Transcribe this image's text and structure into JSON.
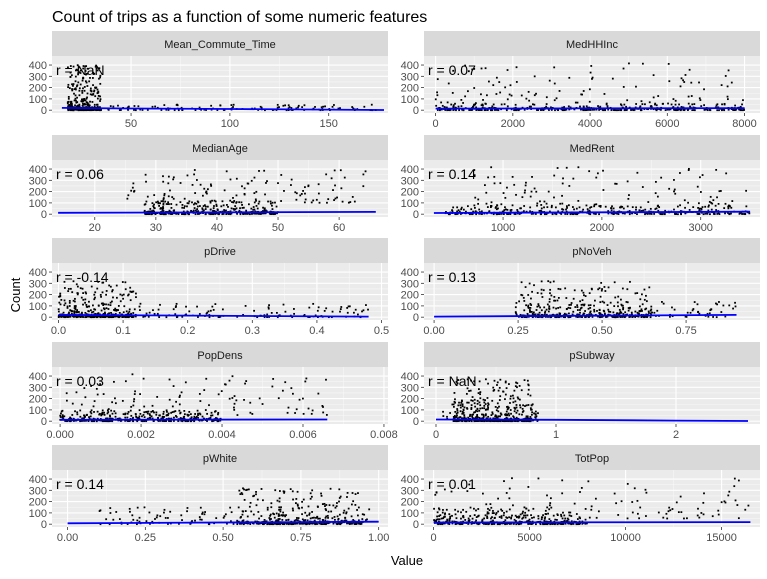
{
  "chart_data": {
    "type": "scatter",
    "title": "Count of trips as a function of some numeric features",
    "xlabel": "Value",
    "ylabel": "Count",
    "grid": true,
    "trend_line_color": "#0000ff",
    "point_color": "#000000",
    "panel_background": "#ebebeb",
    "strip_background": "#d9d9d9",
    "y_ticks": [
      0,
      100,
      200,
      300,
      400
    ],
    "ylim": [
      -25,
      480
    ],
    "panels": [
      {
        "name": "Mean_Commute_Time",
        "r_label": "r = NaN",
        "xlim": [
          10,
          180
        ],
        "x_ticks": [
          50,
          100,
          150
        ],
        "x_tick_labels": [
          "50",
          "100",
          "150"
        ],
        "cluster": [
          [
            18,
            35
          ],
          [
            0,
            400
          ]
        ],
        "sparse": [
          [
            35,
            175
          ],
          [
            0,
            50
          ]
        ],
        "trend": [
          [
            15,
            20
          ],
          [
            50,
            15
          ],
          [
            100,
            10
          ],
          [
            178,
            2
          ]
        ]
      },
      {
        "name": "MedHHInc",
        "r_label": "r = 0.07",
        "xlim": [
          -300,
          8400
        ],
        "x_ticks": [
          0,
          2000,
          4000,
          6000,
          8000
        ],
        "x_tick_labels": [
          "0",
          "2000",
          "4000",
          "6000",
          "8000"
        ],
        "cluster": [
          [
            0,
            8000
          ],
          [
            0,
            60
          ]
        ],
        "sparse": [
          [
            0,
            8000
          ],
          [
            50,
            420
          ]
        ],
        "trend": [
          [
            0,
            14
          ],
          [
            8000,
            18
          ]
        ]
      },
      {
        "name": "MedianAge",
        "r_label": "r = 0.06",
        "xlim": [
          13,
          68
        ],
        "x_ticks": [
          20,
          30,
          40,
          50,
          60
        ],
        "x_tick_labels": [
          "20",
          "30",
          "40",
          "50",
          "60"
        ],
        "cluster": [
          [
            28,
            50
          ],
          [
            0,
            120
          ]
        ],
        "sparse": [
          [
            25,
            65
          ],
          [
            100,
            400
          ]
        ],
        "trend": [
          [
            14,
            12
          ],
          [
            66,
            20
          ]
        ]
      },
      {
        "name": "MedRent",
        "r_label": "r = 0.14",
        "xlim": [
          200,
          3600
        ],
        "x_ticks": [
          1000,
          2000,
          3000
        ],
        "x_tick_labels": [
          "1000",
          "2000",
          "3000"
        ],
        "cluster": [
          [
            400,
            3500
          ],
          [
            0,
            80
          ]
        ],
        "sparse": [
          [
            700,
            3500
          ],
          [
            60,
            420
          ]
        ],
        "trend": [
          [
            300,
            10
          ],
          [
            3500,
            22
          ]
        ]
      },
      {
        "name": "pDrive",
        "r_label": "r = -0.14",
        "xlim": [
          -0.01,
          0.51
        ],
        "x_ticks": [
          0,
          0.1,
          0.2,
          0.3,
          0.4,
          0.5
        ],
        "x_tick_labels": [
          "0.0",
          "0.1",
          "0.2",
          "0.3",
          "0.4",
          "0.5"
        ],
        "cluster": [
          [
            0,
            0.12
          ],
          [
            0,
            320
          ]
        ],
        "sparse": [
          [
            0.1,
            0.48
          ],
          [
            0,
            120
          ]
        ],
        "trend": [
          [
            0,
            20
          ],
          [
            0.48,
            5
          ]
        ]
      },
      {
        "name": "pNoVeh",
        "r_label": "r = 0.13",
        "xlim": [
          -0.03,
          0.97
        ],
        "x_ticks": [
          0,
          0.25,
          0.5,
          0.75
        ],
        "x_tick_labels": [
          "0.00",
          "0.25",
          "0.50",
          "0.75"
        ],
        "cluster": [
          [
            0.25,
            0.65
          ],
          [
            0,
            320
          ]
        ],
        "sparse": [
          [
            0.2,
            0.9
          ],
          [
            0,
            150
          ]
        ],
        "trend": [
          [
            0,
            5
          ],
          [
            0.9,
            20
          ]
        ]
      },
      {
        "name": "PopDens",
        "r_label": "r = 0.03",
        "xlim": [
          -0.0002,
          0.0081
        ],
        "x_ticks": [
          0,
          0.002,
          0.004,
          0.006,
          0.008
        ],
        "x_tick_labels": [
          "0.000",
          "0.002",
          "0.004",
          "0.006",
          "0.008"
        ],
        "cluster": [
          [
            0,
            0.004
          ],
          [
            0,
            100
          ]
        ],
        "sparse": [
          [
            0,
            0.0066
          ],
          [
            50,
            420
          ]
        ],
        "trend": [
          [
            0,
            12
          ],
          [
            0.0066,
            15
          ]
        ]
      },
      {
        "name": "pSubway",
        "r_label": "r = NaN",
        "xlim": [
          -0.1,
          2.7
        ],
        "x_ticks": [
          0,
          1,
          2
        ],
        "x_tick_labels": [
          "0",
          "1",
          "2"
        ],
        "cluster": [
          [
            0.15,
            0.8
          ],
          [
            0,
            380
          ]
        ],
        "sparse": [
          [
            0.05,
            0.85
          ],
          [
            0,
            150
          ]
        ],
        "trend": [
          [
            0,
            15
          ],
          [
            1,
            12
          ],
          [
            2,
            5
          ],
          [
            2.6,
            2
          ]
        ]
      },
      {
        "name": "pWhite",
        "r_label": "r = 0.14",
        "xlim": [
          -0.05,
          1.03
        ],
        "x_ticks": [
          0,
          0.25,
          0.5,
          0.75,
          1
        ],
        "x_tick_labels": [
          "0.00",
          "0.25",
          "0.50",
          "0.75",
          "1.00"
        ],
        "cluster": [
          [
            0.55,
            0.95
          ],
          [
            0,
            320
          ]
        ],
        "sparse": [
          [
            0.1,
            0.98
          ],
          [
            0,
            150
          ]
        ],
        "trend": [
          [
            0,
            8
          ],
          [
            1,
            22
          ]
        ]
      },
      {
        "name": "TotPop",
        "r_label": "r = 0.01",
        "xlim": [
          -500,
          17000
        ],
        "x_ticks": [
          0,
          5000,
          10000,
          15000
        ],
        "x_tick_labels": [
          "0",
          "5000",
          "10000",
          "15000"
        ],
        "cluster": [
          [
            0,
            8000
          ],
          [
            0,
            150
          ]
        ],
        "sparse": [
          [
            0,
            16500
          ],
          [
            50,
            420
          ]
        ],
        "trend": [
          [
            0,
            15
          ],
          [
            16500,
            18
          ]
        ]
      }
    ]
  }
}
